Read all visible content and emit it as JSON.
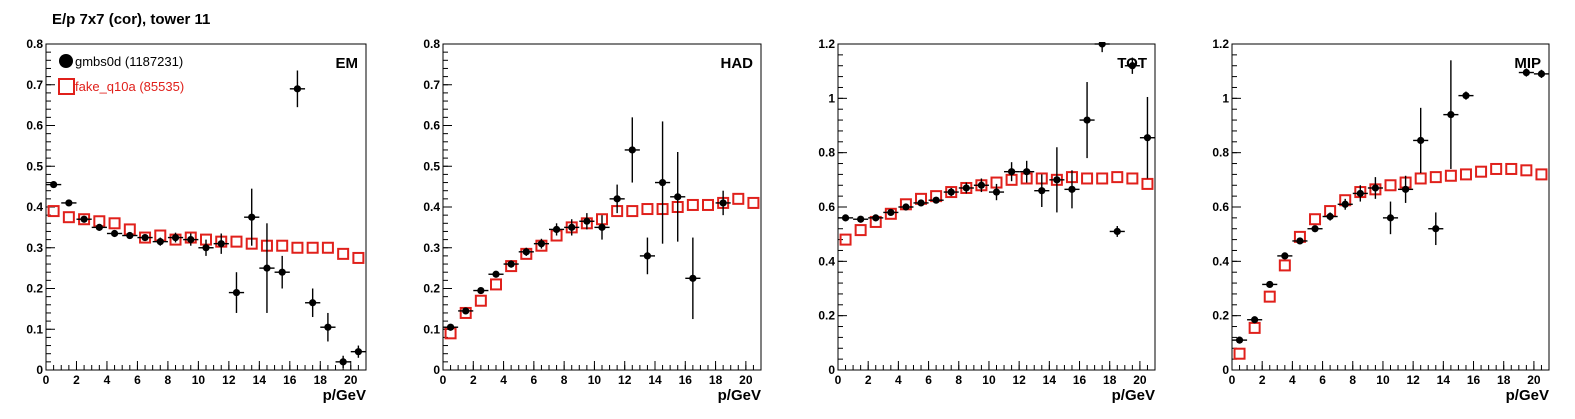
{
  "figure_title": "E/p 7x7 (cor), tower 11",
  "legend": {
    "series_a": "gmbs0d (1187231)",
    "series_b": "fake_q10a (85535)"
  },
  "colors": {
    "series_a": "#000000",
    "series_b": "#e0201b"
  },
  "chart_data": [
    {
      "type": "scatter",
      "panel_label": "EM",
      "xlabel": "p/GeV",
      "xlim": [
        0,
        21
      ],
      "ylim": [
        0,
        0.8
      ],
      "xticks": [
        "0",
        "2",
        "4",
        "6",
        "8",
        "10",
        "12",
        "14",
        "16",
        "18",
        "20"
      ],
      "yticks": [
        "0",
        "0.1",
        "0.2",
        "0.3",
        "0.4",
        "0.5",
        "0.6",
        "0.7",
        "0.8"
      ],
      "series": [
        {
          "name": "gmbs0d (1187231)",
          "x": [
            0.5,
            1.5,
            2.5,
            3.5,
            4.5,
            5.5,
            6.5,
            7.5,
            8.5,
            9.5,
            10.5,
            11.5,
            12.5,
            13.5,
            14.5,
            15.5,
            16.5,
            17.5,
            18.5,
            19.5,
            20.5
          ],
          "y": [
            0.455,
            0.41,
            0.37,
            0.35,
            0.335,
            0.33,
            0.325,
            0.315,
            0.325,
            0.32,
            0.3,
            0.31,
            0.19,
            0.375,
            0.25,
            0.24,
            0.69,
            0.165,
            0.105,
            0.02,
            0.045
          ],
          "yerr": [
            0.008,
            0.006,
            0.006,
            0.006,
            0.006,
            0.007,
            0.008,
            0.01,
            0.012,
            0.015,
            0.02,
            0.025,
            0.05,
            0.07,
            0.11,
            0.04,
            0.045,
            0.035,
            0.035,
            0.015,
            0.015
          ]
        },
        {
          "name": "fake_q10a (85535)",
          "x": [
            0.5,
            1.5,
            2.5,
            3.5,
            4.5,
            5.5,
            6.5,
            7.5,
            8.5,
            9.5,
            10.5,
            11.5,
            12.5,
            13.5,
            14.5,
            15.5,
            16.5,
            17.5,
            18.5,
            19.5,
            20.5
          ],
          "y": [
            0.39,
            0.375,
            0.37,
            0.365,
            0.36,
            0.345,
            0.325,
            0.33,
            0.32,
            0.325,
            0.32,
            0.315,
            0.315,
            0.31,
            0.305,
            0.305,
            0.3,
            0.3,
            0.3,
            0.285,
            0.275
          ]
        }
      ]
    },
    {
      "type": "scatter",
      "panel_label": "HAD",
      "xlabel": "p/GeV",
      "xlim": [
        0,
        21
      ],
      "ylim": [
        0,
        0.8
      ],
      "xticks": [
        "0",
        "2",
        "4",
        "6",
        "8",
        "10",
        "12",
        "14",
        "16",
        "18",
        "20"
      ],
      "yticks": [
        "0",
        "0.1",
        "0.2",
        "0.3",
        "0.4",
        "0.5",
        "0.6",
        "0.7",
        "0.8"
      ],
      "series": [
        {
          "name": "gmbs0d (1187231)",
          "x": [
            0.5,
            1.5,
            2.5,
            3.5,
            4.5,
            5.5,
            6.5,
            7.5,
            8.5,
            9.5,
            10.5,
            11.5,
            12.5,
            13.5,
            14.5,
            15.5,
            16.5,
            18.5
          ],
          "y": [
            0.105,
            0.145,
            0.195,
            0.235,
            0.26,
            0.29,
            0.31,
            0.345,
            0.35,
            0.365,
            0.35,
            0.42,
            0.54,
            0.28,
            0.46,
            0.425,
            0.225,
            0.41
          ],
          "yerr": [
            0.006,
            0.006,
            0.007,
            0.008,
            0.009,
            0.01,
            0.012,
            0.015,
            0.02,
            0.02,
            0.03,
            0.035,
            0.08,
            0.045,
            0.15,
            0.11,
            0.1,
            0.03
          ]
        },
        {
          "name": "fake_q10a (85535)",
          "x": [
            0.5,
            1.5,
            2.5,
            3.5,
            4.5,
            5.5,
            6.5,
            7.5,
            8.5,
            9.5,
            10.5,
            11.5,
            12.5,
            13.5,
            14.5,
            15.5,
            16.5,
            17.5,
            18.5,
            19.5,
            20.5
          ],
          "y": [
            0.09,
            0.14,
            0.17,
            0.21,
            0.255,
            0.285,
            0.305,
            0.33,
            0.35,
            0.36,
            0.37,
            0.39,
            0.39,
            0.395,
            0.395,
            0.4,
            0.405,
            0.405,
            0.41,
            0.42,
            0.41
          ]
        }
      ]
    },
    {
      "type": "scatter",
      "panel_label": "TOT",
      "xlabel": "p/GeV",
      "xlim": [
        0,
        21
      ],
      "ylim": [
        0,
        1.2
      ],
      "xticks": [
        "0",
        "2",
        "4",
        "6",
        "8",
        "10",
        "12",
        "14",
        "16",
        "18",
        "20"
      ],
      "yticks": [
        "0",
        "0.2",
        "0.4",
        "0.6",
        "0.8",
        "1",
        "1.2"
      ],
      "series": [
        {
          "name": "gmbs0d (1187231)",
          "x": [
            0.5,
            1.5,
            2.5,
            3.5,
            4.5,
            5.5,
            6.5,
            7.5,
            8.5,
            9.5,
            10.5,
            11.5,
            12.5,
            13.5,
            14.5,
            15.5,
            16.5,
            17.5,
            18.5,
            19.5,
            20.5
          ],
          "y": [
            0.56,
            0.555,
            0.56,
            0.58,
            0.6,
            0.615,
            0.625,
            0.655,
            0.67,
            0.68,
            0.655,
            0.73,
            0.73,
            0.66,
            0.7,
            0.665,
            0.92,
            1.2,
            0.51,
            1.12,
            0.855
          ],
          "yerr": [
            0.006,
            0.006,
            0.007,
            0.008,
            0.009,
            0.01,
            0.012,
            0.015,
            0.02,
            0.025,
            0.03,
            0.035,
            0.04,
            0.06,
            0.12,
            0.07,
            0.14,
            0.03,
            0.02,
            0.03,
            0.15
          ]
        },
        {
          "name": "fake_q10a (85535)",
          "x": [
            0.5,
            1.5,
            2.5,
            3.5,
            4.5,
            5.5,
            6.5,
            7.5,
            8.5,
            9.5,
            10.5,
            11.5,
            12.5,
            13.5,
            14.5,
            15.5,
            16.5,
            17.5,
            18.5,
            19.5,
            20.5
          ],
          "y": [
            0.48,
            0.515,
            0.545,
            0.575,
            0.61,
            0.63,
            0.64,
            0.655,
            0.67,
            0.68,
            0.69,
            0.7,
            0.705,
            0.705,
            0.7,
            0.71,
            0.705,
            0.705,
            0.71,
            0.705,
            0.685
          ]
        }
      ]
    },
    {
      "type": "scatter",
      "panel_label": "MIP",
      "xlabel": "p/GeV",
      "xlim": [
        0,
        21
      ],
      "ylim": [
        0,
        1.2
      ],
      "xticks": [
        "0",
        "2",
        "4",
        "6",
        "8",
        "10",
        "12",
        "14",
        "16",
        "18",
        "20"
      ],
      "yticks": [
        "0",
        "0.2",
        "0.4",
        "0.6",
        "0.8",
        "1",
        "1.2"
      ],
      "series": [
        {
          "name": "gmbs0d (1187231)",
          "x": [
            0.5,
            1.5,
            2.5,
            3.5,
            4.5,
            5.5,
            6.5,
            7.5,
            8.5,
            9.5,
            10.5,
            11.5,
            12.5,
            13.5,
            14.5,
            15.5,
            19.5,
            20.5
          ],
          "y": [
            0.11,
            0.185,
            0.315,
            0.42,
            0.475,
            0.52,
            0.565,
            0.61,
            0.65,
            0.67,
            0.56,
            0.665,
            0.845,
            0.52,
            0.94,
            1.01,
            1.095,
            1.09
          ],
          "yerr": [
            0.006,
            0.006,
            0.007,
            0.008,
            0.009,
            0.01,
            0.015,
            0.02,
            0.03,
            0.04,
            0.06,
            0.05,
            0.12,
            0.06,
            0.2,
            0.015,
            0.015,
            0.015
          ]
        },
        {
          "name": "fake_q10a (85535)",
          "x": [
            0.5,
            1.5,
            2.5,
            3.5,
            4.5,
            5.5,
            6.5,
            7.5,
            8.5,
            9.5,
            10.5,
            11.5,
            12.5,
            13.5,
            14.5,
            15.5,
            16.5,
            17.5,
            18.5,
            19.5,
            20.5
          ],
          "y": [
            0.06,
            0.155,
            0.27,
            0.385,
            0.49,
            0.555,
            0.585,
            0.625,
            0.655,
            0.665,
            0.68,
            0.69,
            0.705,
            0.71,
            0.715,
            0.72,
            0.73,
            0.74,
            0.74,
            0.735,
            0.72
          ]
        }
      ]
    }
  ]
}
